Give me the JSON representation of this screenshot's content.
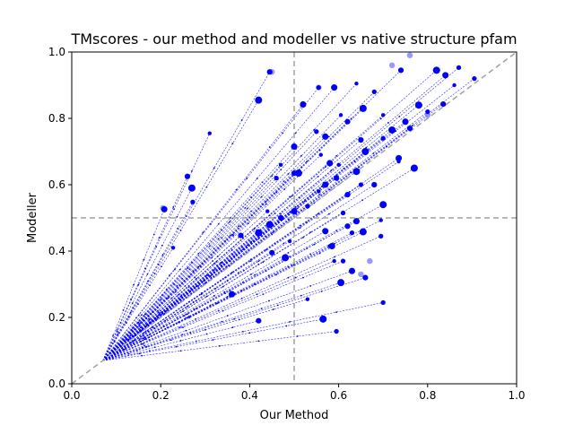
{
  "chart_data": {
    "type": "scatter",
    "title": "TMscores - our method and modeller vs native structure pfam",
    "xlabel": "Our Method",
    "ylabel": "Modeller",
    "xlim": [
      0.0,
      1.0
    ],
    "ylim": [
      0.0,
      1.0
    ],
    "xticks": [
      "0.0",
      "0.2",
      "0.4",
      "0.6",
      "0.8",
      "1.0"
    ],
    "yticks": [
      "0.0",
      "0.2",
      "0.4",
      "0.6",
      "0.8",
      "1.0"
    ],
    "grid": false,
    "reference_lines": {
      "diagonal": "y = x",
      "vertical_x": 0.5,
      "horizontal_y": 0.5,
      "style": "dashed gray"
    },
    "series_color": "#0000ff",
    "ref_color": "#a0a0a0",
    "trajectory_start": [
      0.07,
      0.07
    ],
    "points": [
      {
        "x": 0.31,
        "y": 0.755
      },
      {
        "x": 0.26,
        "y": 0.625
      },
      {
        "x": 0.27,
        "y": 0.59
      },
      {
        "x": 0.272,
        "y": 0.548
      },
      {
        "x": 0.208,
        "y": 0.526
      },
      {
        "x": 0.228,
        "y": 0.41
      },
      {
        "x": 0.445,
        "y": 0.94
      },
      {
        "x": 0.42,
        "y": 0.855
      },
      {
        "x": 0.555,
        "y": 0.893
      },
      {
        "x": 0.59,
        "y": 0.893
      },
      {
        "x": 0.64,
        "y": 0.905
      },
      {
        "x": 0.74,
        "y": 0.945
      },
      {
        "x": 0.82,
        "y": 0.945
      },
      {
        "x": 0.87,
        "y": 0.953
      },
      {
        "x": 0.84,
        "y": 0.93
      },
      {
        "x": 0.86,
        "y": 0.9
      },
      {
        "x": 0.835,
        "y": 0.843
      },
      {
        "x": 0.78,
        "y": 0.84
      },
      {
        "x": 0.8,
        "y": 0.82
      },
      {
        "x": 0.75,
        "y": 0.79
      },
      {
        "x": 0.7,
        "y": 0.81
      },
      {
        "x": 0.76,
        "y": 0.77
      },
      {
        "x": 0.72,
        "y": 0.765
      },
      {
        "x": 0.55,
        "y": 0.76
      },
      {
        "x": 0.57,
        "y": 0.745
      },
      {
        "x": 0.605,
        "y": 0.81
      },
      {
        "x": 0.62,
        "y": 0.79
      },
      {
        "x": 0.655,
        "y": 0.83
      },
      {
        "x": 0.68,
        "y": 0.88
      },
      {
        "x": 0.5,
        "y": 0.715
      },
      {
        "x": 0.56,
        "y": 0.69
      },
      {
        "x": 0.65,
        "y": 0.735
      },
      {
        "x": 0.66,
        "y": 0.7
      },
      {
        "x": 0.7,
        "y": 0.74
      },
      {
        "x": 0.735,
        "y": 0.68
      },
      {
        "x": 0.735,
        "y": 0.67
      },
      {
        "x": 0.5,
        "y": 0.635
      },
      {
        "x": 0.51,
        "y": 0.635
      },
      {
        "x": 0.46,
        "y": 0.62
      },
      {
        "x": 0.58,
        "y": 0.665
      },
      {
        "x": 0.6,
        "y": 0.66
      },
      {
        "x": 0.595,
        "y": 0.62
      },
      {
        "x": 0.64,
        "y": 0.64
      },
      {
        "x": 0.65,
        "y": 0.6
      },
      {
        "x": 0.57,
        "y": 0.6
      },
      {
        "x": 0.555,
        "y": 0.58
      },
      {
        "x": 0.62,
        "y": 0.57
      },
      {
        "x": 0.7,
        "y": 0.54
      },
      {
        "x": 0.53,
        "y": 0.535
      },
      {
        "x": 0.5,
        "y": 0.52
      },
      {
        "x": 0.44,
        "y": 0.52
      },
      {
        "x": 0.47,
        "y": 0.5
      },
      {
        "x": 0.445,
        "y": 0.48
      },
      {
        "x": 0.61,
        "y": 0.515
      },
      {
        "x": 0.64,
        "y": 0.49
      },
      {
        "x": 0.695,
        "y": 0.493
      },
      {
        "x": 0.62,
        "y": 0.475
      },
      {
        "x": 0.655,
        "y": 0.458
      },
      {
        "x": 0.63,
        "y": 0.455
      },
      {
        "x": 0.57,
        "y": 0.46
      },
      {
        "x": 0.49,
        "y": 0.43
      },
      {
        "x": 0.38,
        "y": 0.447
      },
      {
        "x": 0.42,
        "y": 0.455
      },
      {
        "x": 0.695,
        "y": 0.445
      },
      {
        "x": 0.585,
        "y": 0.415
      },
      {
        "x": 0.58,
        "y": 0.415
      },
      {
        "x": 0.45,
        "y": 0.395
      },
      {
        "x": 0.48,
        "y": 0.38
      },
      {
        "x": 0.61,
        "y": 0.37
      },
      {
        "x": 0.63,
        "y": 0.34
      },
      {
        "x": 0.59,
        "y": 0.37
      },
      {
        "x": 0.66,
        "y": 0.32
      },
      {
        "x": 0.605,
        "y": 0.305
      },
      {
        "x": 0.7,
        "y": 0.245
      },
      {
        "x": 0.36,
        "y": 0.27
      },
      {
        "x": 0.53,
        "y": 0.255
      },
      {
        "x": 0.42,
        "y": 0.19
      },
      {
        "x": 0.565,
        "y": 0.195
      },
      {
        "x": 0.595,
        "y": 0.158
      },
      {
        "x": 0.52,
        "y": 0.842
      },
      {
        "x": 0.47,
        "y": 0.66
      },
      {
        "x": 0.68,
        "y": 0.6
      },
      {
        "x": 0.77,
        "y": 0.65
      },
      {
        "x": 0.905,
        "y": 0.92
      }
    ],
    "faint_points": [
      {
        "x": 0.205,
        "y": 0.53
      },
      {
        "x": 0.45,
        "y": 0.94
      },
      {
        "x": 0.555,
        "y": 0.893
      },
      {
        "x": 0.67,
        "y": 0.37
      },
      {
        "x": 0.76,
        "y": 0.99
      },
      {
        "x": 0.65,
        "y": 0.33
      },
      {
        "x": 0.72,
        "y": 0.96
      },
      {
        "x": 0.8,
        "y": 0.81
      }
    ]
  }
}
